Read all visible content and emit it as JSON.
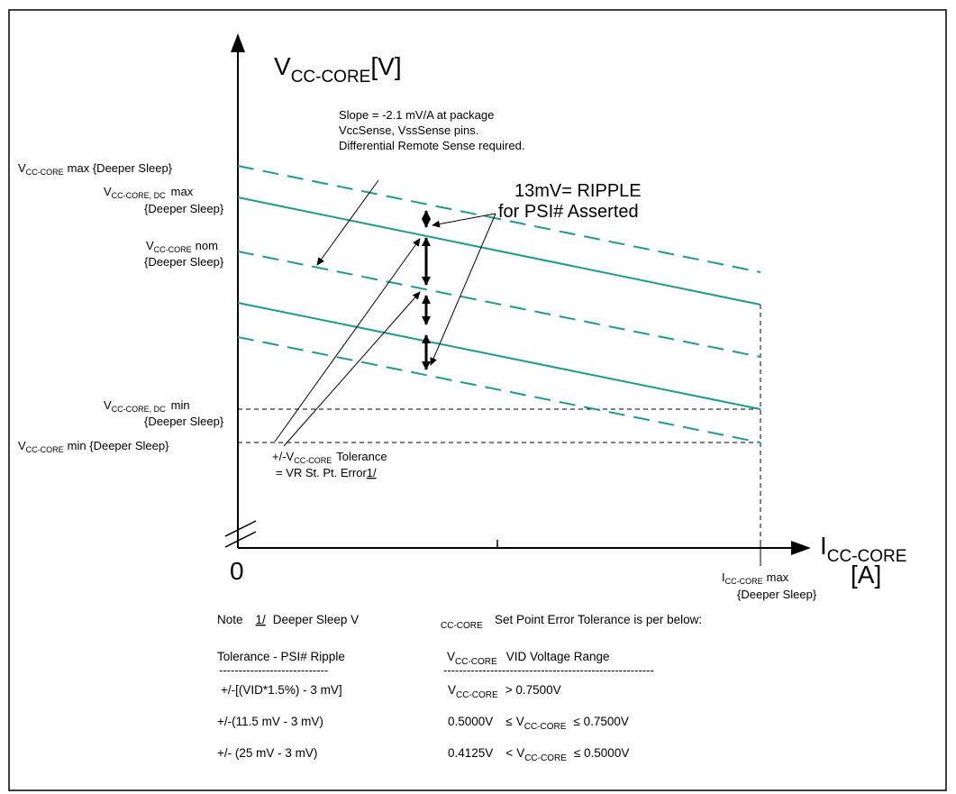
{
  "axes": {
    "y_main": "V",
    "y_sub": "CC-CORE",
    "y_unit": "[V]",
    "x_main": "I",
    "x_sub": "CC-CORE",
    "x_unit": "[A]",
    "origin": "0"
  },
  "slope_note": {
    "line1": "Slope = -2.1 mV/A at package",
    "line2": "VccSense, VssSense pins.",
    "line3": "Differential Remote Sense required."
  },
  "ripple": {
    "line1": "13mV= RIPPLE",
    "line2": "for PSI# Asserted"
  },
  "labels": {
    "vmax_v": "V",
    "vmax_sub": "CC-CORE",
    "vmax_text": "max {Deeper Sleep}",
    "vdcmax_v": "V",
    "vdcmax_sub": "CC-CORE, DC",
    "vdcmax_text": "max",
    "vdcmax_text2": "{Deeper Sleep}",
    "vnom_v": "V",
    "vnom_sub": "CC-CORE",
    "vnom_text": "nom",
    "vnom_text2": "{Deeper Sleep}",
    "vdcmin_v": "V",
    "vdcmin_sub": "CC-CORE, DC",
    "vdcmin_text": "min",
    "vdcmin_text2": "{Deeper Sleep}",
    "vmin_v": "V",
    "vmin_sub": "CC-CORE",
    "vmin_text": "min {Deeper Sleep}",
    "imax_i": "I",
    "imax_sub": "CC-CORE",
    "imax_text": "max",
    "imax_text2": "{Deeper Sleep}"
  },
  "tolerance": {
    "prefix": "+/-V",
    "sub": "CC-CORE",
    "suffix": "Tolerance",
    "line2": "= VR St. Pt. Error",
    "ref": "1/"
  },
  "note": {
    "prefix": "Note",
    "ref": "1/",
    "text1": "Deeper Sleep V",
    "sub": "CC-CORE",
    "text2": "Set Point Error Tolerance is per below:",
    "col1_header": "Tolerance - PSI# Ripple",
    "col2_v": "V",
    "col2_sub": "CC-CORE",
    "col2_header": "VID Voltage Range",
    "dash1": "----------------------------",
    "dash2": "------------------------------------------------------",
    "rows": [
      {
        "tol": "+/-[(VID*1.5%) - 3 mV]",
        "pre": "",
        "op1": "",
        "v": "V",
        "sub": "CC-CORE",
        "post": "> 0.7500V"
      },
      {
        "tol": "+/-(11.5 mV - 3 mV)",
        "pre": "0.5000V",
        "op1": "≤",
        "v": "V",
        "sub": "CC-CORE",
        "post": "≤ 0.7500V"
      },
      {
        "tol": "+/- (25 mV - 3 mV)",
        "pre": "0.4125V",
        "op1": "<",
        "v": "V",
        "sub": "CC-CORE",
        "post": "≤ 0.5000V"
      }
    ]
  },
  "colors": {
    "teal": "#1e9a8e",
    "black": "#000000",
    "frame": "#000000"
  }
}
